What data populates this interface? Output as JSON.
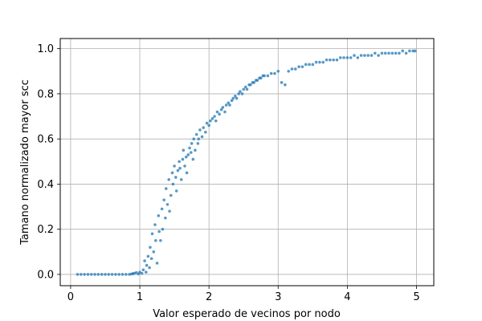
{
  "chart_data": {
    "type": "scatter",
    "xlabel": "Valor esperado de vecinos por nodo",
    "ylabel": "Tamano normalizado mayor scc",
    "xlim": [
      -0.15,
      5.25
    ],
    "ylim": [
      -0.05,
      1.045
    ],
    "xticks": [
      0,
      1,
      2,
      3,
      4,
      5
    ],
    "xtick_labels": [
      "0",
      "1",
      "2",
      "3",
      "4",
      "5"
    ],
    "yticks": [
      0.0,
      0.2,
      0.4,
      0.6,
      0.8,
      1.0
    ],
    "ytick_labels": [
      "0.0",
      "0.2",
      "0.4",
      "0.6",
      "0.8",
      "1.0"
    ],
    "grid": true,
    "colors": {
      "points": "#1f77b4",
      "grid": "#b0b0b0",
      "axes": "#000000"
    },
    "series": [
      {
        "points": [
          [
            0.1,
            0.0
          ],
          [
            0.15,
            0.0
          ],
          [
            0.2,
            0.0
          ],
          [
            0.25,
            0.0
          ],
          [
            0.3,
            0.0
          ],
          [
            0.35,
            0.0
          ],
          [
            0.4,
            0.0
          ],
          [
            0.45,
            0.0
          ],
          [
            0.5,
            0.0
          ],
          [
            0.55,
            0.0
          ],
          [
            0.6,
            0.0
          ],
          [
            0.65,
            0.0
          ],
          [
            0.7,
            0.0
          ],
          [
            0.75,
            0.0
          ],
          [
            0.8,
            0.0
          ],
          [
            0.85,
            0.0
          ],
          [
            0.88,
            0.002
          ],
          [
            0.9,
            0.003
          ],
          [
            0.92,
            0.005
          ],
          [
            0.95,
            0.008
          ],
          [
            0.98,
            0.002
          ],
          [
            1.0,
            0.01
          ],
          [
            1.03,
            0.005
          ],
          [
            1.05,
            0.02
          ],
          [
            1.07,
            0.06
          ],
          [
            1.09,
            0.01
          ],
          [
            1.1,
            0.04
          ],
          [
            1.12,
            0.08
          ],
          [
            1.14,
            0.03
          ],
          [
            1.15,
            0.12
          ],
          [
            1.17,
            0.07
          ],
          [
            1.18,
            0.18
          ],
          [
            1.2,
            0.1
          ],
          [
            1.22,
            0.22
          ],
          [
            1.23,
            0.15
          ],
          [
            1.25,
            0.05
          ],
          [
            1.27,
            0.26
          ],
          [
            1.28,
            0.19
          ],
          [
            1.3,
            0.15
          ],
          [
            1.32,
            0.29
          ],
          [
            1.33,
            0.2
          ],
          [
            1.35,
            0.33
          ],
          [
            1.37,
            0.25
          ],
          [
            1.38,
            0.38
          ],
          [
            1.4,
            0.31
          ],
          [
            1.42,
            0.42
          ],
          [
            1.43,
            0.28
          ],
          [
            1.45,
            0.35
          ],
          [
            1.47,
            0.45
          ],
          [
            1.48,
            0.4
          ],
          [
            1.5,
            0.48
          ],
          [
            1.52,
            0.43
          ],
          [
            1.53,
            0.37
          ],
          [
            1.55,
            0.46
          ],
          [
            1.57,
            0.5
          ],
          [
            1.58,
            0.47
          ],
          [
            1.6,
            0.42
          ],
          [
            1.62,
            0.51
          ],
          [
            1.63,
            0.55
          ],
          [
            1.65,
            0.48
          ],
          [
            1.67,
            0.52
          ],
          [
            1.68,
            0.45
          ],
          [
            1.7,
            0.53
          ],
          [
            1.72,
            0.56
          ],
          [
            1.74,
            0.54
          ],
          [
            1.75,
            0.58
          ],
          [
            1.77,
            0.51
          ],
          [
            1.78,
            0.6
          ],
          [
            1.8,
            0.55
          ],
          [
            1.82,
            0.62
          ],
          [
            1.84,
            0.58
          ],
          [
            1.85,
            0.6
          ],
          [
            1.87,
            0.64
          ],
          [
            1.9,
            0.61
          ],
          [
            1.92,
            0.65
          ],
          [
            1.95,
            0.63
          ],
          [
            1.97,
            0.67
          ],
          [
            2.0,
            0.66
          ],
          [
            2.02,
            0.68
          ],
          [
            2.05,
            0.69
          ],
          [
            2.08,
            0.7
          ],
          [
            2.1,
            0.68
          ],
          [
            2.12,
            0.72
          ],
          [
            2.15,
            0.71
          ],
          [
            2.18,
            0.73
          ],
          [
            2.2,
            0.74
          ],
          [
            2.23,
            0.72
          ],
          [
            2.25,
            0.75
          ],
          [
            2.28,
            0.76
          ],
          [
            2.3,
            0.75
          ],
          [
            2.33,
            0.77
          ],
          [
            2.35,
            0.78
          ],
          [
            2.38,
            0.79
          ],
          [
            2.4,
            0.78
          ],
          [
            2.43,
            0.8
          ],
          [
            2.45,
            0.81
          ],
          [
            2.48,
            0.8
          ],
          [
            2.5,
            0.82
          ],
          [
            2.53,
            0.83
          ],
          [
            2.55,
            0.82
          ],
          [
            2.58,
            0.84
          ],
          [
            2.6,
            0.84
          ],
          [
            2.63,
            0.85
          ],
          [
            2.65,
            0.85
          ],
          [
            2.68,
            0.86
          ],
          [
            2.7,
            0.86
          ],
          [
            2.73,
            0.87
          ],
          [
            2.75,
            0.87
          ],
          [
            2.78,
            0.88
          ],
          [
            2.8,
            0.88
          ],
          [
            2.85,
            0.88
          ],
          [
            2.9,
            0.89
          ],
          [
            2.95,
            0.89
          ],
          [
            3.0,
            0.9
          ],
          [
            3.05,
            0.85
          ],
          [
            3.1,
            0.84
          ],
          [
            3.15,
            0.9
          ],
          [
            3.2,
            0.91
          ],
          [
            3.25,
            0.91
          ],
          [
            3.3,
            0.92
          ],
          [
            3.35,
            0.92
          ],
          [
            3.4,
            0.93
          ],
          [
            3.45,
            0.93
          ],
          [
            3.5,
            0.93
          ],
          [
            3.55,
            0.94
          ],
          [
            3.6,
            0.94
          ],
          [
            3.65,
            0.94
          ],
          [
            3.7,
            0.95
          ],
          [
            3.75,
            0.95
          ],
          [
            3.8,
            0.95
          ],
          [
            3.85,
            0.95
          ],
          [
            3.9,
            0.96
          ],
          [
            3.95,
            0.96
          ],
          [
            4.0,
            0.96
          ],
          [
            4.05,
            0.96
          ],
          [
            4.1,
            0.97
          ],
          [
            4.15,
            0.96
          ],
          [
            4.2,
            0.97
          ],
          [
            4.25,
            0.97
          ],
          [
            4.3,
            0.97
          ],
          [
            4.35,
            0.97
          ],
          [
            4.4,
            0.98
          ],
          [
            4.45,
            0.97
          ],
          [
            4.5,
            0.98
          ],
          [
            4.55,
            0.98
          ],
          [
            4.6,
            0.98
          ],
          [
            4.65,
            0.98
          ],
          [
            4.7,
            0.98
          ],
          [
            4.75,
            0.98
          ],
          [
            4.8,
            0.99
          ],
          [
            4.85,
            0.98
          ],
          [
            4.9,
            0.99
          ],
          [
            4.95,
            0.99
          ],
          [
            4.98,
            0.99
          ]
        ]
      }
    ]
  }
}
